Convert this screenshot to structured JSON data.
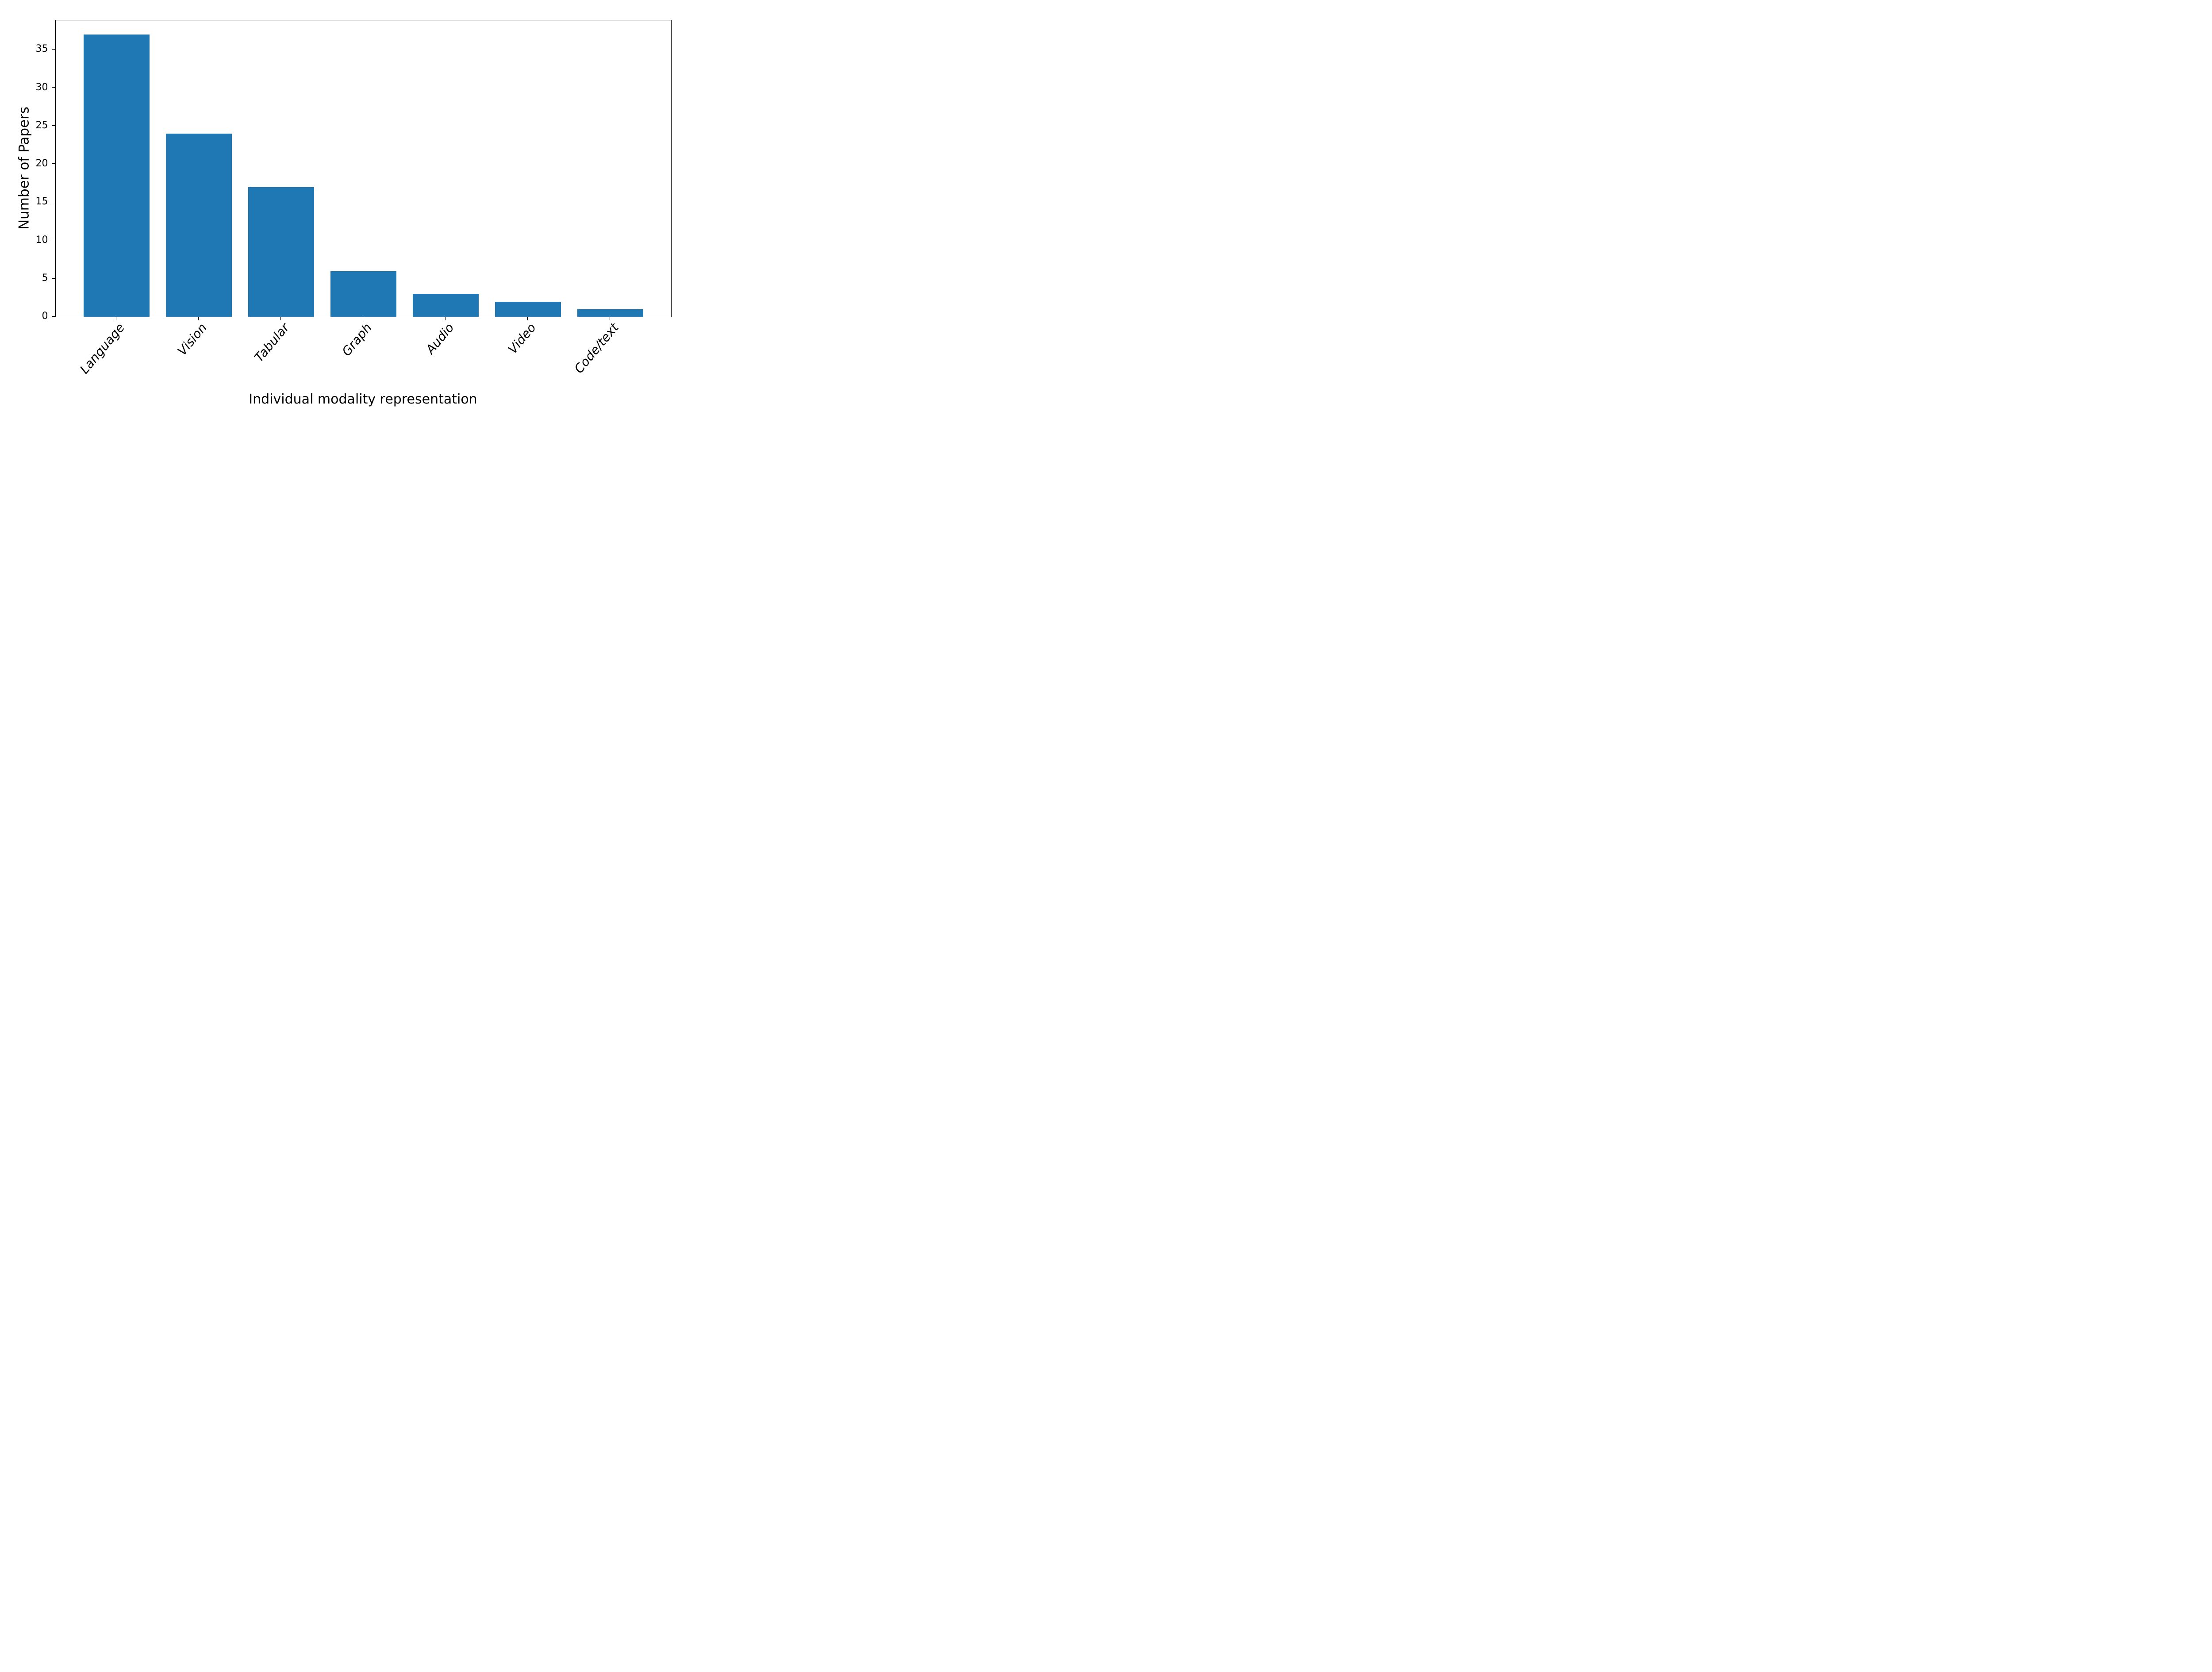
{
  "figure": {
    "background": "#ffffff",
    "text_color": "#000000"
  },
  "chart_data": {
    "type": "bar",
    "title": "",
    "categories": [
      "Language",
      "Vision",
      "Tabular",
      "Graph",
      "Audio",
      "Video",
      "Code/text"
    ],
    "values": [
      37,
      24,
      17,
      6,
      3,
      2,
      1
    ],
    "xlabel": "Individual modality representation",
    "ylabel": "Number of Papers",
    "yticks": [
      0,
      5,
      10,
      15,
      20,
      25,
      30,
      35
    ],
    "ylim": [
      0,
      38.85
    ],
    "xlim": [
      -0.74,
      6.74
    ],
    "bar_width": 0.8,
    "bar_color": "#1f77b4",
    "grid": false,
    "legend": null,
    "x_tick_label_rotation_deg": 50,
    "x_tick_label_style": "italic"
  }
}
